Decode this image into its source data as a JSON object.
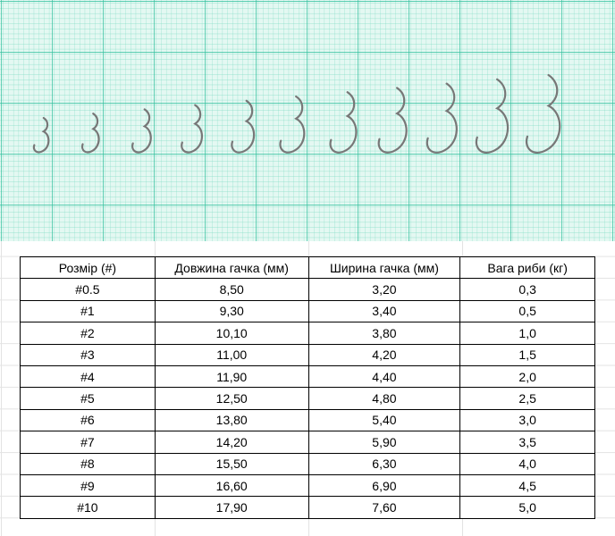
{
  "table": {
    "header": [
      "Розмір (#)",
      "Довжина гачка (мм)",
      "Ширина гачка (мм)",
      "Вага риби (кг)"
    ],
    "rows": [
      [
        "#0.5",
        "8,50",
        "3,20",
        "0,3"
      ],
      [
        "#1",
        "9,30",
        "3,40",
        "0,5"
      ],
      [
        "#2",
        "10,10",
        "3,80",
        "1,0"
      ],
      [
        "#3",
        "11,00",
        "4,20",
        "1,5"
      ],
      [
        "#4",
        "11,90",
        "4,40",
        "2,0"
      ],
      [
        "#5",
        "12,50",
        "4,80",
        "2,5"
      ],
      [
        "#6",
        "13,80",
        "5,40",
        "3,0"
      ],
      [
        "#7",
        "14,20",
        "5,90",
        "3,5"
      ],
      [
        "#8",
        "15,50",
        "6,30",
        "4,0"
      ],
      [
        "#9",
        "16,60",
        "6,90",
        "4,5"
      ],
      [
        "#10",
        "17,90",
        "7,60",
        "5,0"
      ]
    ]
  }
}
